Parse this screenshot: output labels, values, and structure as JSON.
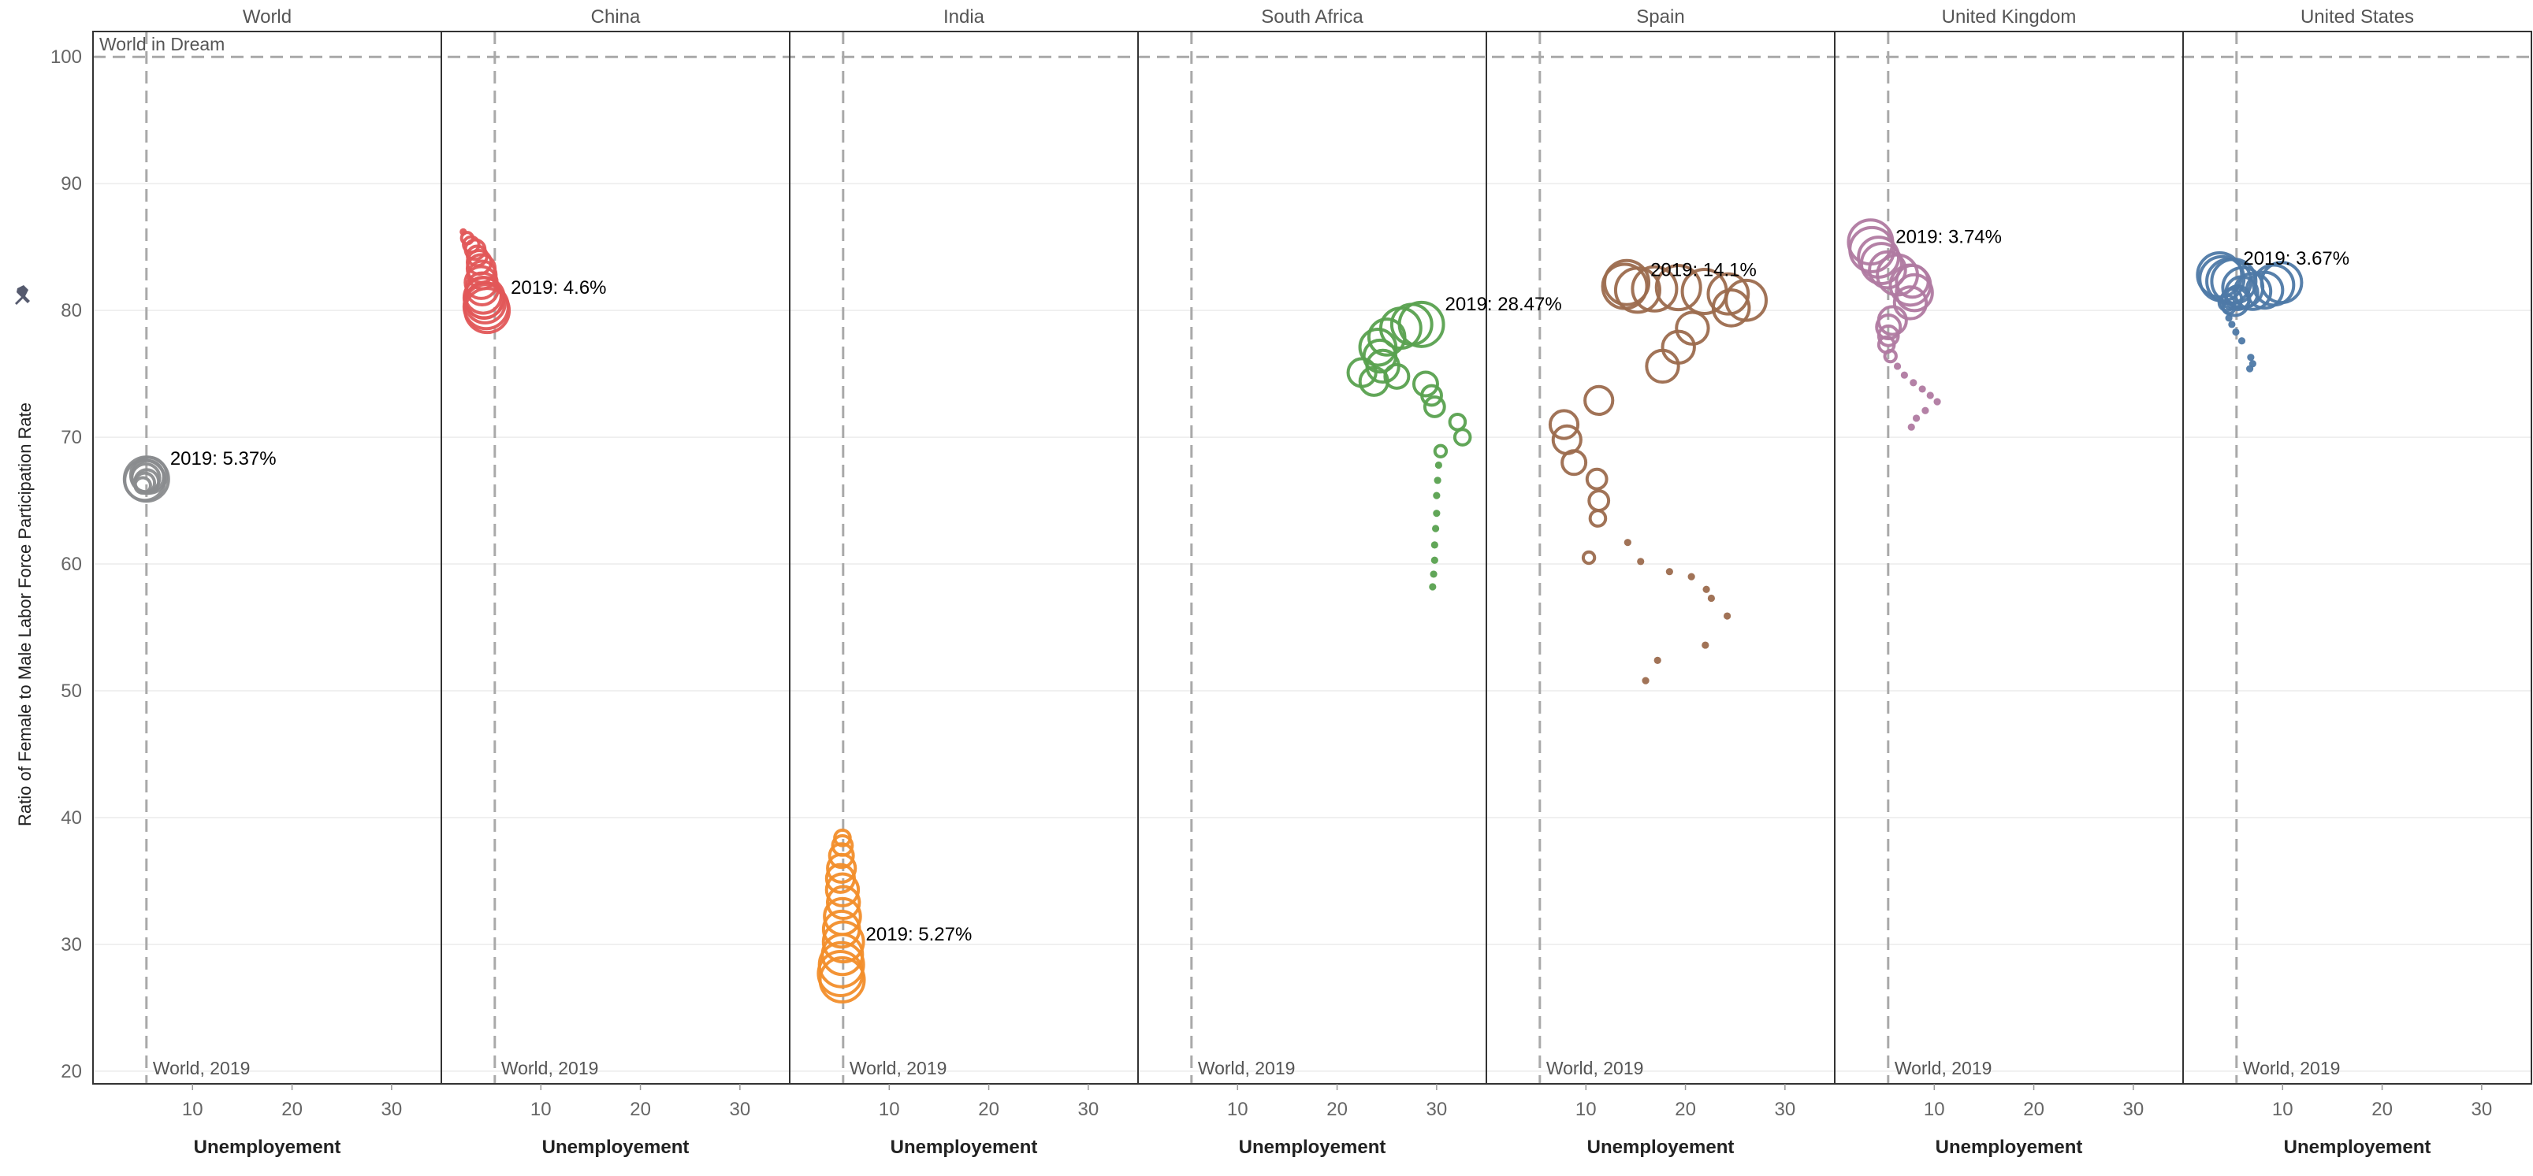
{
  "chart_data": {
    "type": "scatter",
    "title": "",
    "ylabel": "Ratio of Female to Male Labor Force Participation Rate",
    "xlabel": "Unemployement",
    "ylim": [
      19,
      102
    ],
    "xlim": [
      0,
      35
    ],
    "y_ticks": [
      20,
      30,
      40,
      50,
      60,
      70,
      80,
      90,
      100
    ],
    "x_ticks": [
      10,
      20,
      30
    ],
    "grid": true,
    "reference_lines": {
      "horizontal": {
        "value": 100,
        "label": "World in Dream"
      },
      "vertical": {
        "value": 5.37,
        "label": "World, 2019"
      }
    },
    "panels": [
      {
        "name": "World",
        "color": "#8a8c8e",
        "annotation": "2019: 5.37%",
        "annot_point": [
          5.37,
          66.7
        ],
        "points": [
          [
            5.0,
            66.2,
            3
          ],
          [
            5.2,
            66.4,
            4
          ],
          [
            5.4,
            66.5,
            5
          ],
          [
            5.3,
            66.8,
            6
          ],
          [
            5.5,
            66.9,
            7
          ],
          [
            5.6,
            67.0,
            8
          ],
          [
            5.2,
            66.6,
            9
          ],
          [
            5.37,
            66.7,
            10
          ]
        ]
      },
      {
        "name": "China",
        "color": "#e15759",
        "annotation": "2019: 4.6%",
        "annot_point": [
          4.6,
          80.2
        ],
        "points": [
          [
            2.2,
            86.2,
            1
          ],
          [
            2.6,
            85.7,
            2
          ],
          [
            3.0,
            85.2,
            3
          ],
          [
            3.4,
            84.8,
            4
          ],
          [
            3.6,
            84.3,
            4
          ],
          [
            3.8,
            83.8,
            5
          ],
          [
            4.0,
            83.3,
            6
          ],
          [
            4.1,
            82.8,
            6
          ],
          [
            4.0,
            82.2,
            7
          ],
          [
            4.1,
            81.7,
            7
          ],
          [
            4.2,
            81.2,
            8
          ],
          [
            4.3,
            80.8,
            8
          ],
          [
            4.3,
            81.0,
            9
          ],
          [
            4.4,
            80.6,
            9
          ],
          [
            4.5,
            80.3,
            10
          ],
          [
            4.6,
            80.0,
            10
          ]
        ]
      },
      {
        "name": "India",
        "color": "#f28e2b",
        "annotation": "2019: 5.27%",
        "annot_point": [
          5.27,
          29.2
        ],
        "points": [
          [
            5.3,
            38.4,
            3
          ],
          [
            5.3,
            37.8,
            4
          ],
          [
            5.2,
            37.0,
            5
          ],
          [
            5.2,
            36.0,
            6
          ],
          [
            5.1,
            35.2,
            6
          ],
          [
            5.3,
            34.3,
            7
          ],
          [
            5.4,
            33.3,
            7
          ],
          [
            5.3,
            32.2,
            8
          ],
          [
            5.2,
            31.2,
            8
          ],
          [
            5.4,
            30.2,
            9
          ],
          [
            5.3,
            29.2,
            9
          ],
          [
            5.2,
            28.4,
            10
          ],
          [
            5.1,
            27.7,
            10
          ],
          [
            5.27,
            27.2,
            10
          ]
        ]
      },
      {
        "name": "South Africa",
        "color": "#59a14f",
        "annotation": "2019: 28.47%",
        "annot_point": [
          28.47,
          78.9
        ],
        "points": [
          [
            29.6,
            58.2,
            1
          ],
          [
            29.7,
            59.2,
            1
          ],
          [
            29.8,
            60.3,
            1
          ],
          [
            29.8,
            61.5,
            1
          ],
          [
            29.9,
            62.8,
            1
          ],
          [
            30.0,
            64.0,
            1
          ],
          [
            30.0,
            65.4,
            1
          ],
          [
            30.1,
            66.6,
            1
          ],
          [
            30.2,
            67.8,
            1
          ],
          [
            30.4,
            68.9,
            2
          ],
          [
            32.6,
            70.0,
            3
          ],
          [
            32.1,
            71.2,
            3
          ],
          [
            29.8,
            72.4,
            4
          ],
          [
            29.5,
            73.3,
            4
          ],
          [
            28.9,
            74.2,
            5
          ],
          [
            26.0,
            74.8,
            5
          ],
          [
            22.5,
            75.1,
            6
          ],
          [
            23.7,
            74.4,
            6
          ],
          [
            24.6,
            75.6,
            7
          ],
          [
            24.3,
            76.4,
            7
          ],
          [
            24.1,
            77.1,
            8
          ],
          [
            25.0,
            77.9,
            8
          ],
          [
            26.4,
            78.6,
            9
          ],
          [
            27.5,
            78.9,
            9
          ],
          [
            28.47,
            78.9,
            10
          ]
        ]
      },
      {
        "name": "Spain",
        "color": "#9c6b4e",
        "annotation": "2019: 14.1%",
        "annot_point": [
          14.1,
          81.6
        ],
        "points": [
          [
            16.0,
            50.8,
            1
          ],
          [
            17.2,
            52.4,
            1
          ],
          [
            22.0,
            53.6,
            1
          ],
          [
            24.2,
            55.9,
            1
          ],
          [
            22.6,
            57.3,
            1
          ],
          [
            22.1,
            58.0,
            1
          ],
          [
            20.6,
            59.0,
            1
          ],
          [
            18.4,
            59.4,
            1
          ],
          [
            15.5,
            60.2,
            1
          ],
          [
            14.2,
            61.7,
            1
          ],
          [
            10.3,
            60.5,
            2
          ],
          [
            11.2,
            63.6,
            3
          ],
          [
            11.3,
            65.0,
            4
          ],
          [
            11.1,
            66.7,
            4
          ],
          [
            8.8,
            68.0,
            5
          ],
          [
            8.1,
            69.8,
            6
          ],
          [
            7.8,
            71.0,
            6
          ],
          [
            11.3,
            72.9,
            6
          ],
          [
            17.7,
            75.6,
            7
          ],
          [
            19.3,
            77.1,
            7
          ],
          [
            20.7,
            78.6,
            7
          ],
          [
            24.6,
            80.2,
            8
          ],
          [
            26.1,
            80.8,
            9
          ],
          [
            24.3,
            81.3,
            9
          ],
          [
            21.9,
            81.5,
            10
          ],
          [
            19.3,
            81.8,
            10
          ],
          [
            16.9,
            81.7,
            10
          ],
          [
            15.2,
            81.6,
            10
          ],
          [
            13.9,
            81.9,
            10
          ],
          [
            14.1,
            82.2,
            10
          ]
        ]
      },
      {
        "name": "United Kingdom",
        "color": "#b07aa1",
        "annotation": "2019: 3.74%",
        "annot_point": [
          3.74,
          84.2
        ],
        "points": [
          [
            7.7,
            70.8,
            1
          ],
          [
            8.2,
            71.5,
            1
          ],
          [
            9.1,
            72.1,
            1
          ],
          [
            10.3,
            72.8,
            1
          ],
          [
            9.6,
            73.3,
            1
          ],
          [
            8.8,
            73.8,
            1
          ],
          [
            7.9,
            74.3,
            1
          ],
          [
            7.0,
            74.9,
            1
          ],
          [
            6.3,
            75.6,
            1
          ],
          [
            5.6,
            76.4,
            2
          ],
          [
            5.2,
            77.3,
            3
          ],
          [
            5.4,
            78.0,
            4
          ],
          [
            5.4,
            78.7,
            5
          ],
          [
            5.8,
            79.2,
            6
          ],
          [
            7.6,
            80.6,
            7
          ],
          [
            8.0,
            81.4,
            8
          ],
          [
            7.6,
            82.0,
            9
          ],
          [
            7.8,
            82.3,
            7
          ],
          [
            6.3,
            82.8,
            9
          ],
          [
            5.3,
            83.2,
            8
          ],
          [
            4.7,
            83.7,
            9
          ],
          [
            4.4,
            84.2,
            9
          ],
          [
            3.74,
            84.8,
            10
          ],
          [
            3.6,
            85.4,
            10
          ]
        ]
      },
      {
        "name": "United States",
        "color": "#4e79a7",
        "annotation": "2019: 3.67%",
        "annot_point": [
          3.67,
          82.5
        ],
        "points": [
          [
            6.7,
            75.4,
            1
          ],
          [
            7.0,
            75.8,
            1
          ],
          [
            6.8,
            76.3,
            1
          ],
          [
            5.9,
            77.6,
            1
          ],
          [
            5.3,
            78.3,
            1
          ],
          [
            4.9,
            78.9,
            1
          ],
          [
            4.6,
            79.4,
            1
          ],
          [
            4.6,
            80.2,
            2
          ],
          [
            4.4,
            80.6,
            3
          ],
          [
            4.9,
            80.9,
            4
          ],
          [
            5.5,
            81.0,
            5
          ],
          [
            5.2,
            80.7,
            6
          ],
          [
            5.9,
            81.4,
            7
          ],
          [
            7.0,
            81.5,
            8
          ],
          [
            8.2,
            81.6,
            8
          ],
          [
            9.1,
            82.0,
            9
          ],
          [
            9.9,
            82.2,
            9
          ],
          [
            6.0,
            81.8,
            9
          ],
          [
            5.1,
            82.3,
            10
          ],
          [
            4.6,
            82.3,
            10
          ],
          [
            3.9,
            82.5,
            10
          ],
          [
            3.67,
            82.8,
            10
          ]
        ]
      }
    ]
  }
}
